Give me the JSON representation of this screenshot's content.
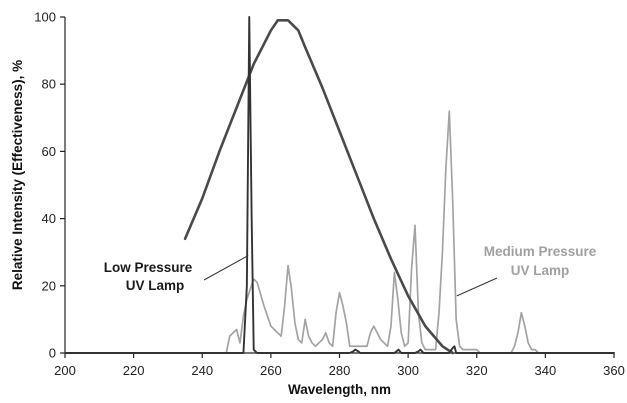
{
  "chart_data": {
    "type": "line",
    "title": "",
    "xlabel": "Wavelength, nm",
    "ylabel": "Relative Intensity (Effectiveness), %",
    "xlim": [
      200,
      360
    ],
    "ylim": [
      0,
      100
    ],
    "xticks": [
      200,
      220,
      240,
      260,
      280,
      300,
      320,
      340,
      360
    ],
    "yticks": [
      0,
      20,
      40,
      60,
      80,
      100
    ],
    "grid": false,
    "legend": "none",
    "series": [
      {
        "name": "",
        "role": "germicidal-effectiveness",
        "color": "#4a4a4a",
        "x": [
          235,
          240,
          245,
          250,
          255,
          258,
          260,
          262,
          265,
          268,
          270,
          275,
          280,
          285,
          290,
          295,
          300,
          305,
          310,
          313
        ],
        "y": [
          34,
          46,
          60,
          73,
          86,
          92,
          96,
          99,
          99,
          96,
          91,
          79,
          66,
          53,
          40,
          28,
          17,
          8,
          2,
          0
        ]
      },
      {
        "name": "Low Pressure UV Lamp",
        "color": "#333333",
        "x": [
          200,
          252,
          253,
          253.7,
          254.4,
          255,
          256,
          283,
          284,
          284.6,
          285.5,
          286,
          296,
          297.2,
          298,
          302,
          303,
          303.6,
          304.5,
          312,
          313,
          313.5,
          314,
          360
        ],
        "y": [
          0,
          0,
          20,
          100,
          40,
          1,
          0,
          0,
          0.5,
          1,
          0.5,
          0,
          0,
          1,
          0,
          0,
          0.5,
          1,
          0,
          0,
          1.5,
          2,
          0,
          0
        ]
      },
      {
        "name": "Medium Pressure UV Lamp",
        "color": "#a3a3a3",
        "x": [
          200,
          247,
          248,
          250,
          251,
          252,
          253,
          254,
          255,
          256,
          258,
          260,
          262,
          263,
          264,
          265,
          266,
          267,
          268,
          269,
          270,
          271,
          272,
          273,
          275,
          276,
          277,
          278,
          279,
          280,
          281,
          282,
          283,
          284,
          285,
          286,
          287,
          288,
          289,
          290,
          291,
          292,
          293,
          294,
          295,
          296,
          297,
          298,
          299,
          300,
          301,
          302,
          303,
          304,
          305,
          306,
          307,
          308,
          309,
          310,
          311,
          312,
          313,
          314,
          315,
          316,
          318,
          320,
          321,
          322,
          324,
          326,
          328,
          330,
          331,
          332,
          333,
          334,
          335,
          336,
          337,
          338,
          340,
          342,
          344,
          360
        ],
        "y": [
          0,
          0,
          5,
          7,
          3,
          11,
          16,
          19,
          22,
          21,
          14,
          8,
          6,
          5,
          14,
          26,
          19,
          9,
          4,
          3,
          10,
          5,
          3,
          2,
          4,
          6,
          3,
          2,
          12,
          18,
          14,
          9,
          2,
          2,
          2,
          2,
          2,
          2,
          6,
          8,
          6,
          4,
          3,
          2,
          8,
          24,
          16,
          6,
          2,
          3,
          25,
          38,
          12,
          3,
          1,
          1,
          1,
          1,
          12,
          30,
          55,
          72,
          45,
          10,
          2,
          1,
          1,
          1,
          0,
          0,
          0,
          0,
          0,
          0,
          2,
          6,
          12,
          8,
          3,
          1,
          1,
          0,
          0,
          0,
          0,
          0
        ]
      }
    ],
    "annotations": [
      {
        "lines": [
          "Low Pressure",
          "UV Lamp"
        ],
        "color": "#1a1a1a"
      },
      {
        "lines": [
          "Medium Pressure",
          "UV Lamp"
        ],
        "color": "#a0a0a0"
      }
    ]
  }
}
